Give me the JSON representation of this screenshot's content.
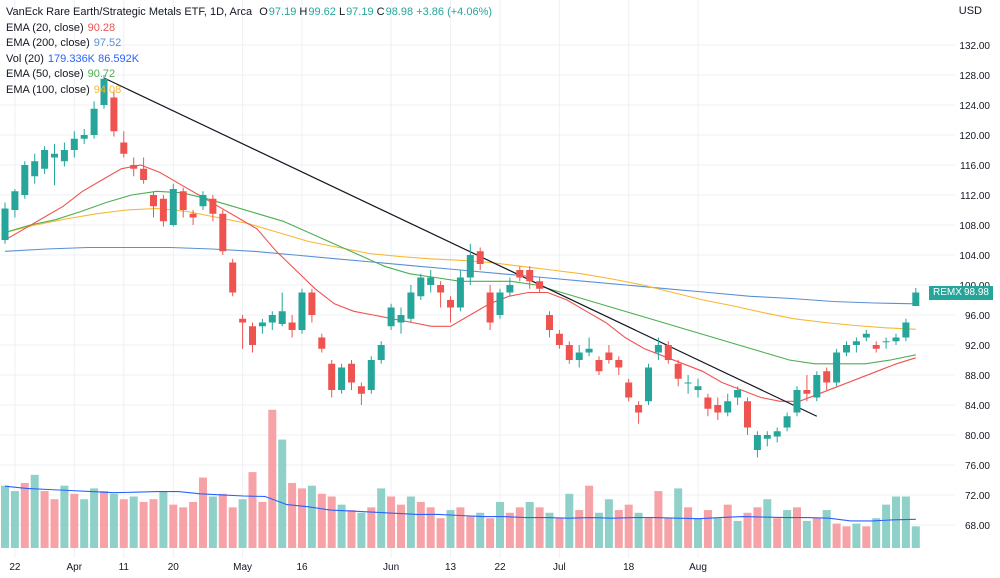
{
  "header": {
    "title": "VanEck Rare Earth/Strategic Metals ETF, 1D, Arca",
    "o_label": "O",
    "o_value": "97.19",
    "h_label": "H",
    "h_value": "99.62",
    "l_label": "L",
    "l_value": "97.19",
    "c_label": "C",
    "c_value": "98.98",
    "change": "+3.86 (+4.06%)"
  },
  "indicators": [
    {
      "label": "EMA (20, close)",
      "value": "90.28",
      "color": "#ef5350"
    },
    {
      "label": "EMA (200, close)",
      "value": "97.52",
      "color": "#5b8fd6"
    },
    {
      "label": "Vol (20)",
      "value": "179.336K 86.592K",
      "color": "#2962ff"
    },
    {
      "label": "EMA (50, close)",
      "value": "90.72",
      "color": "#4caf50"
    },
    {
      "label": "EMA (100, close)",
      "value": "94.08",
      "color": "#f7b731"
    }
  ],
  "currency": "USD",
  "last_price": {
    "symbol": "REMX",
    "value": "98.98"
  },
  "colors": {
    "up": "#26a69a",
    "down": "#ef5350",
    "vol_up": "#8fd1c9",
    "vol_down": "#f6a2a6",
    "grid": "#eef0f3"
  },
  "chart_data": {
    "type": "candlestick",
    "ylim": [
      72,
      134
    ],
    "yticks": [
      "132.00",
      "128.00",
      "124.00",
      "120.00",
      "116.00",
      "112.00",
      "108.00",
      "104.00",
      "100.00",
      "96.00",
      "92.00",
      "88.00",
      "84.00",
      "80.00",
      "76.00",
      "72.00",
      "68.00"
    ],
    "xticks": [
      {
        "i": 1,
        "label": "22"
      },
      {
        "i": 7,
        "label": "Apr"
      },
      {
        "i": 12,
        "label": "11"
      },
      {
        "i": 17,
        "label": "20"
      },
      {
        "i": 24,
        "label": "May"
      },
      {
        "i": 30,
        "label": "16"
      },
      {
        "i": 39,
        "label": "Jun"
      },
      {
        "i": 45,
        "label": "13"
      },
      {
        "i": 50,
        "label": "22"
      },
      {
        "i": 56,
        "label": "Jul"
      },
      {
        "i": 63,
        "label": "18"
      },
      {
        "i": 70,
        "label": "Aug"
      }
    ],
    "ohlc": [
      [
        106.0,
        111.0,
        105.5,
        110.2
      ],
      [
        110.0,
        112.8,
        109.0,
        112.5
      ],
      [
        112.0,
        116.5,
        111.5,
        116.0
      ],
      [
        114.5,
        117.5,
        113.5,
        116.5
      ],
      [
        115.5,
        118.5,
        114.8,
        118.0
      ],
      [
        117.0,
        118.8,
        113.3,
        117.5
      ],
      [
        116.5,
        119.0,
        115.8,
        118.0
      ],
      [
        118.0,
        120.5,
        117.0,
        119.5
      ],
      [
        119.5,
        120.8,
        118.8,
        120.0
      ],
      [
        120.0,
        124.5,
        119.5,
        123.5
      ],
      [
        124.0,
        128.0,
        123.5,
        127.5
      ],
      [
        125.0,
        126.0,
        119.8,
        120.5
      ],
      [
        119.0,
        120.5,
        117.0,
        117.5
      ],
      [
        116.0,
        117.0,
        114.5,
        115.5
      ],
      [
        115.5,
        117.0,
        113.5,
        114.0
      ],
      [
        112.0,
        112.5,
        109.0,
        110.5
      ],
      [
        111.5,
        112.0,
        107.8,
        108.5
      ],
      [
        108.0,
        113.5,
        107.8,
        112.8
      ],
      [
        112.5,
        113.0,
        109.0,
        110.0
      ],
      [
        109.5,
        110.0,
        108.0,
        109.0
      ],
      [
        110.5,
        112.5,
        110.0,
        112.0
      ],
      [
        111.5,
        112.0,
        108.5,
        109.5
      ],
      [
        109.5,
        110.0,
        104.0,
        104.5
      ],
      [
        103.0,
        103.5,
        98.5,
        99.0
      ],
      [
        95.5,
        96.0,
        91.5,
        95.0
      ],
      [
        94.5,
        95.0,
        91.0,
        92.0
      ],
      [
        94.5,
        95.5,
        93.5,
        95.0
      ],
      [
        95.0,
        96.5,
        94.0,
        96.0
      ],
      [
        94.8,
        99.0,
        94.5,
        96.5
      ],
      [
        95.0,
        96.0,
        93.0,
        94.0
      ],
      [
        94.0,
        99.5,
        93.5,
        99.0
      ],
      [
        99.0,
        99.5,
        95.0,
        96.0
      ],
      [
        93.0,
        93.5,
        91.0,
        91.5
      ],
      [
        89.5,
        90.0,
        85.0,
        86.0
      ],
      [
        86.0,
        89.5,
        85.5,
        89.0
      ],
      [
        89.5,
        90.0,
        86.0,
        87.0
      ],
      [
        86.5,
        87.0,
        84.0,
        85.5
      ],
      [
        86.0,
        90.5,
        85.5,
        90.0
      ],
      [
        90.0,
        92.5,
        89.5,
        92.0
      ],
      [
        94.5,
        97.5,
        94.0,
        97.0
      ],
      [
        95.0,
        97.0,
        93.5,
        96.0
      ],
      [
        95.5,
        100.0,
        95.0,
        99.0
      ],
      [
        98.5,
        101.5,
        98.0,
        101.0
      ],
      [
        100.0,
        102.0,
        99.0,
        101.0
      ],
      [
        100.0,
        100.5,
        97.0,
        99.0
      ],
      [
        98.0,
        98.5,
        95.0,
        97.0
      ],
      [
        97.0,
        102.0,
        96.5,
        101.0
      ],
      [
        101.0,
        105.5,
        100.0,
        104.0
      ],
      [
        104.5,
        105.0,
        102.0,
        102.8
      ],
      [
        99.0,
        100.0,
        94.0,
        95.0
      ],
      [
        96.0,
        99.5,
        95.5,
        99.0
      ],
      [
        99.0,
        101.0,
        98.5,
        100.0
      ],
      [
        102.0,
        102.5,
        100.5,
        101.0
      ],
      [
        102.0,
        102.5,
        99.5,
        100.5
      ],
      [
        100.5,
        101.0,
        99.0,
        99.5
      ],
      [
        96.0,
        96.5,
        93.0,
        94.0
      ],
      [
        93.5,
        94.0,
        91.5,
        92.0
      ],
      [
        92.0,
        92.5,
        89.5,
        90.0
      ],
      [
        90.0,
        92.0,
        89.0,
        91.0
      ],
      [
        91.0,
        93.0,
        90.5,
        91.5
      ],
      [
        90.0,
        90.5,
        88.0,
        88.5
      ],
      [
        91.0,
        92.0,
        89.5,
        90.0
      ],
      [
        90.0,
        90.5,
        88.0,
        89.0
      ],
      [
        87.0,
        87.5,
        84.5,
        85.0
      ],
      [
        84.0,
        84.5,
        81.5,
        83.0
      ],
      [
        84.5,
        89.5,
        84.0,
        89.0
      ],
      [
        91.0,
        93.0,
        90.0,
        92.0
      ],
      [
        92.0,
        92.5,
        89.5,
        90.0
      ],
      [
        89.5,
        90.0,
        86.5,
        87.5
      ],
      [
        87.0,
        88.0,
        85.5,
        87.0
      ],
      [
        86.0,
        87.5,
        85.0,
        86.5
      ],
      [
        85.0,
        85.5,
        82.5,
        83.5
      ],
      [
        84.0,
        85.0,
        82.0,
        83.0
      ],
      [
        83.0,
        85.5,
        82.5,
        84.5
      ],
      [
        85.0,
        86.5,
        84.0,
        86.0
      ],
      [
        84.5,
        85.0,
        80.0,
        81.0
      ],
      [
        78.0,
        80.5,
        77.0,
        80.0
      ],
      [
        79.5,
        80.5,
        78.5,
        80.0
      ],
      [
        79.8,
        81.0,
        79.0,
        80.5
      ],
      [
        81.0,
        83.0,
        80.5,
        82.5
      ],
      [
        83.0,
        86.5,
        82.5,
        86.0
      ],
      [
        86.0,
        88.0,
        84.5,
        85.5
      ],
      [
        85.0,
        88.5,
        84.5,
        88.0
      ],
      [
        88.5,
        89.0,
        86.0,
        87.0
      ],
      [
        87.0,
        91.5,
        86.5,
        91.0
      ],
      [
        91.0,
        92.5,
        90.5,
        92.0
      ],
      [
        92.0,
        93.0,
        91.0,
        92.5
      ],
      [
        93.0,
        94.0,
        92.5,
        93.5
      ],
      [
        92.0,
        92.5,
        91.0,
        91.5
      ],
      [
        92.5,
        93.0,
        91.5,
        92.5
      ],
      [
        92.5,
        93.5,
        92.0,
        93.0
      ],
      [
        93.0,
        95.5,
        92.5,
        95.0
      ],
      [
        97.2,
        99.6,
        97.2,
        99.0
      ]
    ],
    "volume": [
      [
        115,
        1
      ],
      [
        105,
        1
      ],
      [
        120,
        0
      ],
      [
        135,
        1
      ],
      [
        105,
        0
      ],
      [
        90,
        0
      ],
      [
        115,
        1
      ],
      [
        100,
        0
      ],
      [
        90,
        1
      ],
      [
        110,
        1
      ],
      [
        105,
        0
      ],
      [
        100,
        1
      ],
      [
        90,
        0
      ],
      [
        95,
        1
      ],
      [
        85,
        0
      ],
      [
        90,
        0
      ],
      [
        105,
        1
      ],
      [
        80,
        0
      ],
      [
        75,
        0
      ],
      [
        85,
        0
      ],
      [
        130,
        0
      ],
      [
        95,
        1
      ],
      [
        100,
        0
      ],
      [
        75,
        0
      ],
      [
        90,
        1
      ],
      [
        140,
        0
      ],
      [
        85,
        0
      ],
      [
        255,
        0
      ],
      [
        200,
        1
      ],
      [
        120,
        0
      ],
      [
        110,
        0
      ],
      [
        115,
        1
      ],
      [
        100,
        0
      ],
      [
        95,
        0
      ],
      [
        80,
        1
      ],
      [
        70,
        0
      ],
      [
        65,
        1
      ],
      [
        75,
        0
      ],
      [
        110,
        1
      ],
      [
        95,
        0
      ],
      [
        80,
        0
      ],
      [
        95,
        1
      ],
      [
        85,
        0
      ],
      [
        75,
        0
      ],
      [
        55,
        0
      ],
      [
        70,
        1
      ],
      [
        75,
        0
      ],
      [
        60,
        0
      ],
      [
        65,
        1
      ],
      [
        55,
        0
      ],
      [
        85,
        1
      ],
      [
        65,
        0
      ],
      [
        75,
        0
      ],
      [
        85,
        1
      ],
      [
        75,
        0
      ],
      [
        65,
        1
      ],
      [
        55,
        0
      ],
      [
        100,
        1
      ],
      [
        70,
        0
      ],
      [
        115,
        0
      ],
      [
        65,
        1
      ],
      [
        90,
        1
      ],
      [
        70,
        0
      ],
      [
        80,
        0
      ],
      [
        65,
        1
      ],
      [
        55,
        0
      ],
      [
        105,
        0
      ],
      [
        55,
        0
      ],
      [
        110,
        1
      ],
      [
        75,
        0
      ],
      [
        55,
        1
      ],
      [
        70,
        0
      ],
      [
        55,
        1
      ],
      [
        80,
        0
      ],
      [
        50,
        1
      ],
      [
        65,
        0
      ],
      [
        75,
        0
      ],
      [
        90,
        1
      ],
      [
        55,
        0
      ],
      [
        70,
        1
      ],
      [
        75,
        0
      ],
      [
        50,
        1
      ],
      [
        55,
        0
      ],
      [
        70,
        1
      ],
      [
        45,
        0
      ],
      [
        40,
        0
      ],
      [
        45,
        1
      ],
      [
        40,
        0
      ],
      [
        55,
        1
      ],
      [
        80,
        1
      ],
      [
        95,
        1
      ],
      [
        95,
        1
      ],
      [
        40,
        1
      ]
    ],
    "vol_ma": [
      114,
      110,
      108,
      106,
      104,
      102,
      103,
      104,
      104,
      100,
      98,
      96,
      95,
      80,
      76,
      70,
      68,
      66,
      64,
      62,
      62,
      60,
      58,
      58,
      56,
      56,
      55,
      56,
      55,
      56,
      56,
      55,
      54,
      56,
      58,
      57,
      56,
      56,
      55,
      50,
      50,
      52,
      53
    ],
    "ema20": [
      106,
      107.5,
      109,
      110.5,
      112.5,
      114,
      115.5,
      116,
      115,
      113.5,
      112,
      110.5,
      109,
      107.5,
      104.5,
      102,
      99.5,
      97.5,
      96.5,
      96,
      95.5,
      95,
      94.5,
      94.5,
      96,
      97.5,
      98.5,
      99,
      99,
      98,
      96.5,
      95,
      93,
      91.5,
      90.5,
      89.5,
      88.5,
      87,
      86,
      85,
      84.5,
      84.5,
      85.5,
      86.5,
      87.5,
      88.5,
      89.5,
      90.3
    ],
    "ema50": [
      107,
      108,
      108.7,
      109.8,
      111,
      112,
      112.5,
      112.3,
      111.5,
      110.5,
      109.5,
      108.5,
      107,
      105.5,
      104,
      102.5,
      101.5,
      101,
      100.5,
      100.5,
      100.5,
      100,
      99,
      98,
      97,
      96,
      95,
      94,
      93,
      92,
      91,
      90,
      89.5,
      89.5,
      89.5,
      90,
      90.7
    ],
    "ema100": [
      107,
      108,
      108.8,
      109.5,
      110,
      110.2,
      109.8,
      109,
      108.2,
      107,
      105.8,
      105,
      104.2,
      103.8,
      103.5,
      103.3,
      103,
      102.5,
      102,
      101.5,
      100.8,
      100,
      99,
      98,
      97.2,
      96.3,
      95.5,
      95,
      94.6,
      94.3,
      94.1
    ],
    "ema200": [
      104.5,
      104.8,
      105,
      105,
      105,
      104.8,
      104.5,
      104,
      103.5,
      103,
      102.5,
      102,
      101.5,
      101,
      100.5,
      100,
      99.5,
      99,
      98.5,
      98.2,
      97.8,
      97.6,
      97.5
    ],
    "trendline": [
      [
        10,
        127.6
      ],
      [
        82,
        82.5
      ]
    ]
  }
}
